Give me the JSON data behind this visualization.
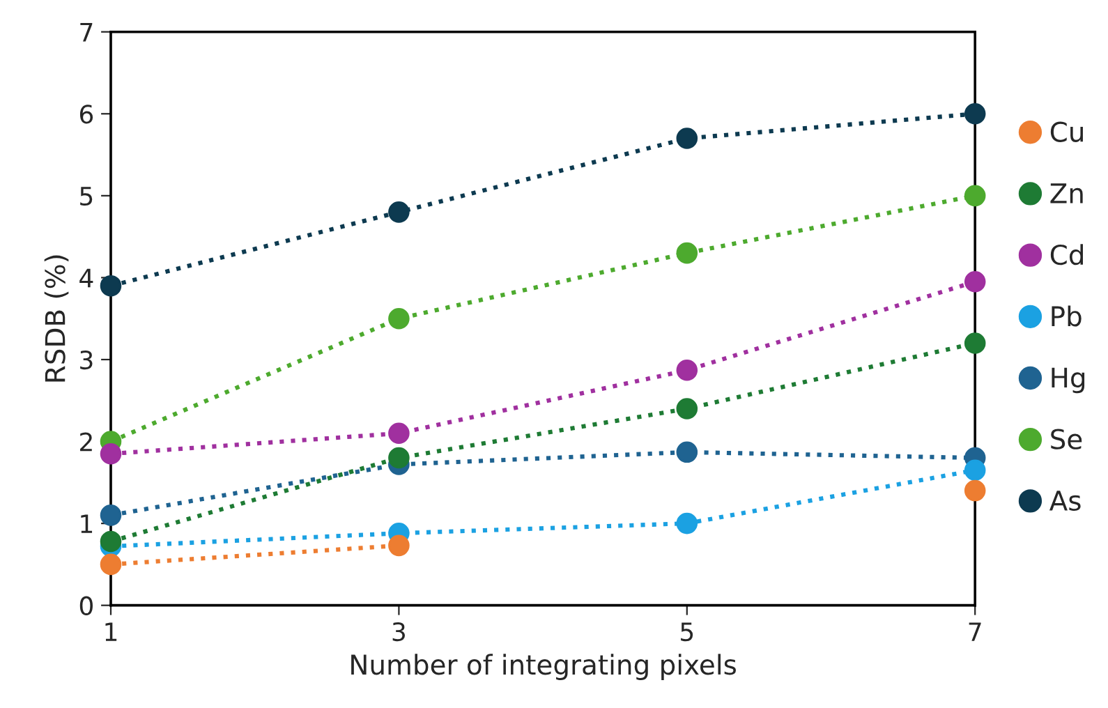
{
  "chart_data": {
    "type": "line",
    "xlabel": "Number of integrating pixels",
    "ylabel": "RSDB (%)",
    "x": [
      1,
      3,
      5,
      7
    ],
    "xlim": [
      1,
      7
    ],
    "xticks": [
      1,
      3,
      5,
      7
    ],
    "ylim": [
      0,
      7
    ],
    "yticks": [
      0,
      1,
      2,
      3,
      4,
      5,
      6,
      7
    ],
    "grid": false,
    "legend": "right",
    "marker": "circle",
    "line_style": "dotted",
    "series": [
      {
        "name": "Cu",
        "color": "#ed7d31",
        "values": [
          0.5,
          0.73,
          null,
          1.4
        ]
      },
      {
        "name": "Zn",
        "color": "#1e7b34",
        "values": [
          0.78,
          1.8,
          2.4,
          3.2
        ]
      },
      {
        "name": "Cd",
        "color": "#a0309f",
        "values": [
          1.85,
          2.1,
          2.87,
          3.95
        ]
      },
      {
        "name": "Pb",
        "color": "#1ba1e2",
        "values": [
          0.72,
          0.88,
          1.0,
          1.65
        ]
      },
      {
        "name": "Hg",
        "color": "#1f6391",
        "values": [
          1.1,
          1.72,
          1.87,
          1.8
        ]
      },
      {
        "name": "Se",
        "color": "#4daa2e",
        "values": [
          2.0,
          3.5,
          4.3,
          5.0
        ]
      },
      {
        "name": "As",
        "color": "#0d3a50",
        "values": [
          3.9,
          4.8,
          5.7,
          6.0
        ]
      }
    ]
  }
}
